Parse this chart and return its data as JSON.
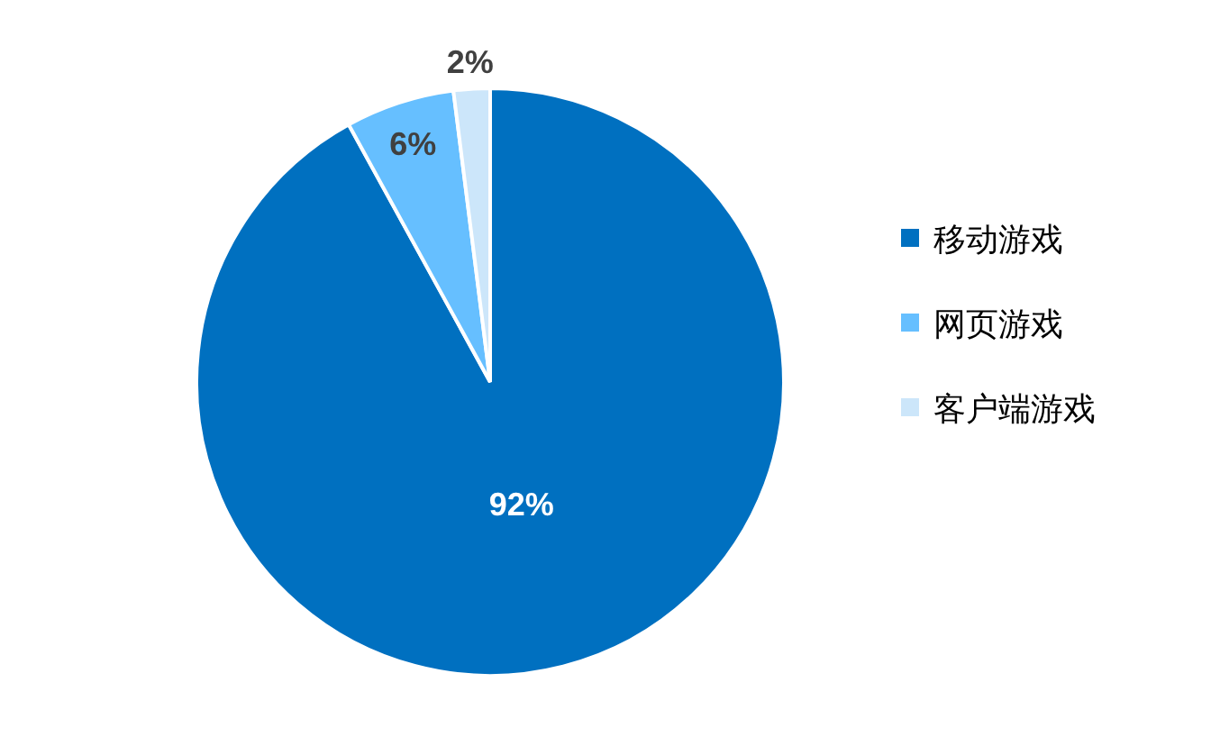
{
  "chart_data": {
    "type": "pie",
    "categories": [
      "移动游戏",
      "网页游戏",
      "客户端游戏"
    ],
    "values": [
      92,
      6,
      2
    ],
    "colors": [
      "#0070c0",
      "#66bfff",
      "#cce6fa"
    ],
    "value_labels": [
      "92%",
      "6%",
      "2%"
    ],
    "legend": "right"
  }
}
